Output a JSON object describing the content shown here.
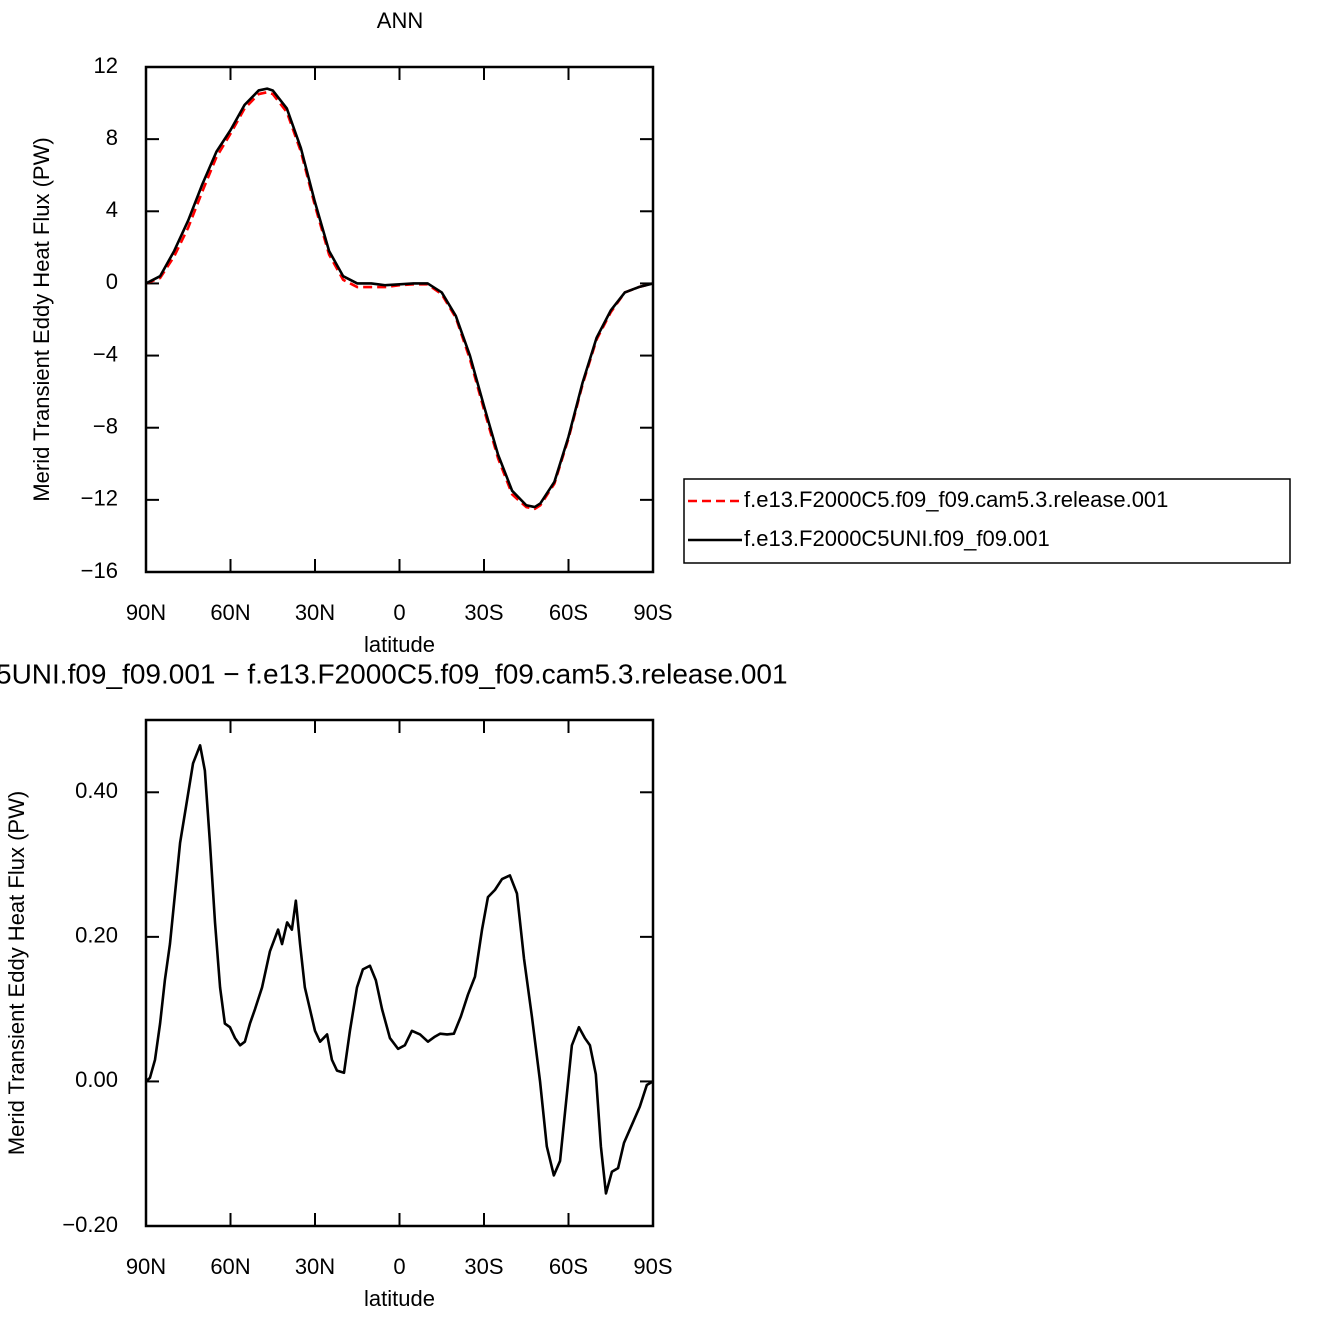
{
  "chart_data": [
    {
      "type": "line",
      "title": "ANN",
      "xlabel": "latitude",
      "ylabel": "Merid Transient Eddy Heat Flux (PW)",
      "xlim": [
        90,
        -90
      ],
      "xticks": [
        {
          "value": 90,
          "label": "90N"
        },
        {
          "value": 60,
          "label": "60N"
        },
        {
          "value": 30,
          "label": "30N"
        },
        0,
        {
          "value": -30,
          "label": "30S"
        },
        {
          "value": -60,
          "label": "60S"
        },
        {
          "value": -90,
          "label": "90S"
        }
      ],
      "ylim": [
        -16,
        12
      ],
      "yticks": [
        {
          "value": -16,
          "label": "−16"
        },
        {
          "value": -12,
          "label": "−12"
        },
        {
          "value": -8,
          "label": "−8"
        },
        {
          "value": -4,
          "label": "−4"
        },
        0,
        4,
        8,
        12
      ],
      "legend": "outside-right",
      "x": [
        90,
        85,
        80,
        75,
        70,
        65,
        60,
        55,
        50,
        47,
        45,
        40,
        35,
        30,
        25,
        20,
        15,
        10,
        5,
        0,
        -5,
        -10,
        -15,
        -20,
        -25,
        -30,
        -35,
        -40,
        -45,
        -48,
        -50,
        -55,
        -60,
        -65,
        -70,
        -75,
        -80,
        -85,
        -90
      ],
      "series": [
        {
          "name": "f.e13.F2000C5.f09_f09.cam5.3.release.001",
          "color": "#ff0000",
          "dashed": true,
          "values": [
            0,
            0.3,
            1.5,
            3.1,
            5.1,
            7.0,
            8.3,
            9.7,
            10.5,
            10.6,
            10.5,
            9.5,
            7.3,
            4.3,
            1.6,
            0.2,
            -0.2,
            -0.2,
            -0.2,
            -0.1,
            -0.05,
            -0.05,
            -0.6,
            -1.9,
            -4.2,
            -7.0,
            -9.7,
            -11.7,
            -12.4,
            -12.5,
            -12.3,
            -11.1,
            -8.6,
            -5.6,
            -3.1,
            -1.6,
            -0.5,
            -0.2,
            0
          ]
        },
        {
          "name": "f.e13.F2000C5UNI.f09_f09.001",
          "color": "#000000",
          "dashed": false,
          "values": [
            0,
            0.4,
            1.8,
            3.5,
            5.5,
            7.3,
            8.5,
            9.9,
            10.7,
            10.8,
            10.7,
            9.7,
            7.5,
            4.5,
            1.8,
            0.4,
            0.0,
            0.0,
            -0.1,
            -0.05,
            0.0,
            0.0,
            -0.5,
            -1.8,
            -4.0,
            -6.8,
            -9.5,
            -11.5,
            -12.3,
            -12.4,
            -12.2,
            -11.0,
            -8.5,
            -5.5,
            -3.0,
            -1.5,
            -0.5,
            -0.2,
            0
          ]
        }
      ]
    },
    {
      "type": "line",
      "title": "5UNI.f09_f09.001  −  f.e13.F2000C5.f09_f09.cam5.3.release.001",
      "xlabel": "latitude",
      "ylabel": "Merid Transient Eddy Heat Flux (PW)",
      "xlim": [
        90,
        -90
      ],
      "xticks": [
        {
          "value": 90,
          "label": "90N"
        },
        {
          "value": 60,
          "label": "60N"
        },
        {
          "value": 30,
          "label": "30N"
        },
        0,
        {
          "value": -30,
          "label": "30S"
        },
        {
          "value": -60,
          "label": "60S"
        },
        {
          "value": -90,
          "label": "90S"
        }
      ],
      "ylim": [
        -0.2,
        0.5
      ],
      "yticks": [
        {
          "value": -0.2,
          "label": "−0.20"
        },
        {
          "value": 0,
          "label": "0.00"
        },
        {
          "value": 0.2,
          "label": "0.20"
        },
        {
          "value": 0.4,
          "label": "0.40"
        }
      ],
      "x": [
        90,
        88.6,
        86.8,
        85,
        83.3,
        81.5,
        79.7,
        77.9,
        75.8,
        73.3,
        70.8,
        69.1,
        67.3,
        65.5,
        63.7,
        62,
        60.2,
        58.4,
        56.6,
        54.9,
        53.1,
        51.3,
        48.8,
        46,
        43.1,
        41.7,
        39.9,
        38.2,
        36.8,
        35.3,
        33.6,
        31.8,
        30,
        28.2,
        25.7,
        24,
        22.2,
        19.7,
        17.6,
        15.1,
        13,
        10.5,
        8.4,
        6.2,
        3.4,
        0.5,
        -1.9,
        -4.4,
        -7.3,
        -10.1,
        -12.6,
        -14.4,
        -16.9,
        -19.3,
        -21.8,
        -24.3,
        -26.8,
        -29.3,
        -31.4,
        -33.9,
        -36.4,
        -39.2,
        -41.7,
        -44.2,
        -47,
        -49.9,
        -52.3,
        -54.8,
        -57,
        -59.1,
        -61.2,
        -63.7,
        -65.8,
        -67.6,
        -69.7,
        -71.5,
        -73.3,
        -75.4,
        -77.6,
        -79.7,
        -82.5,
        -85.3,
        -87.8,
        -90
      ],
      "series": [
        {
          "color": "#000000",
          "dashed": false,
          "values": [
            0,
            0.005,
            0.03,
            0.08,
            0.14,
            0.19,
            0.26,
            0.33,
            0.38,
            0.44,
            0.465,
            0.43,
            0.33,
            0.22,
            0.13,
            0.08,
            0.075,
            0.06,
            0.05,
            0.055,
            0.08,
            0.1,
            0.13,
            0.18,
            0.21,
            0.19,
            0.22,
            0.21,
            0.25,
            0.19,
            0.13,
            0.1,
            0.07,
            0.055,
            0.065,
            0.03,
            0.015,
            0.012,
            0.07,
            0.13,
            0.155,
            0.16,
            0.14,
            0.1,
            0.06,
            0.045,
            0.05,
            0.07,
            0.065,
            0.055,
            0.062,
            0.066,
            0.065,
            0.066,
            0.09,
            0.12,
            0.145,
            0.21,
            0.255,
            0.265,
            0.28,
            0.285,
            0.26,
            0.17,
            0.09,
            0,
            -0.09,
            -0.13,
            -0.11,
            -0.03,
            0.05,
            0.075,
            0.06,
            0.05,
            0.01,
            -0.09,
            -0.155,
            -0.125,
            -0.12,
            -0.085,
            -0.06,
            -0.035,
            -0.005,
            0
          ]
        }
      ]
    }
  ]
}
